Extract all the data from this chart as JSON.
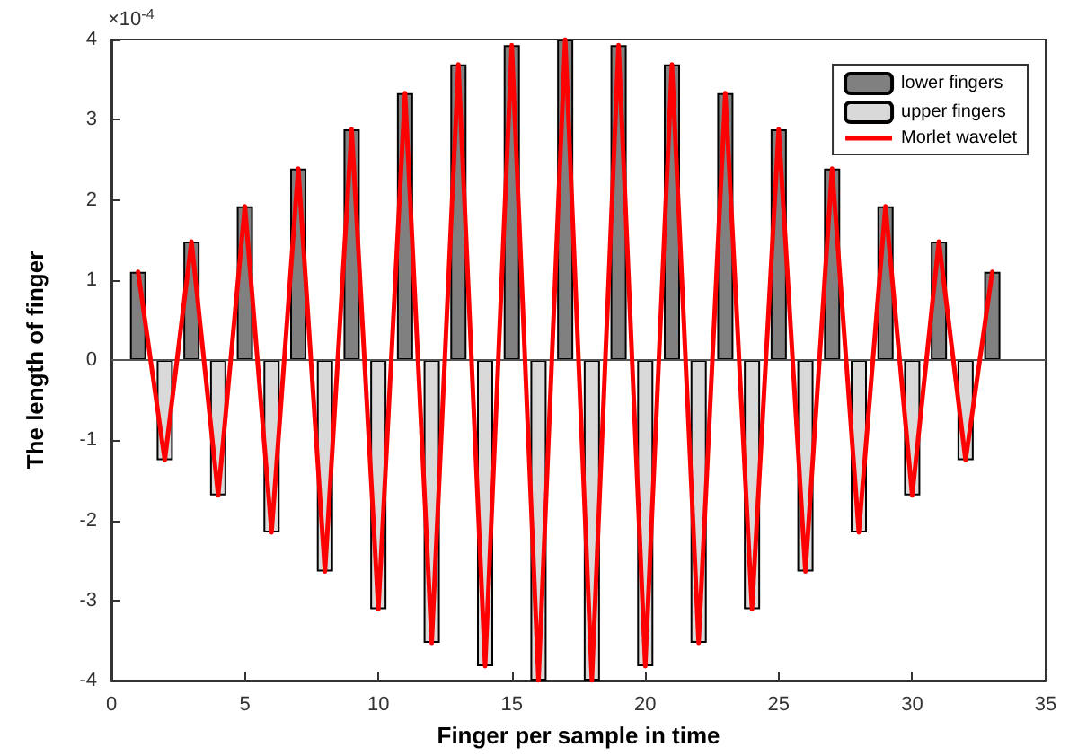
{
  "chart_data": {
    "type": "bar",
    "xlabel": "Finger per sample in time",
    "ylabel": "The length of finger",
    "annotations": [
      "×10$^{-4}$"
    ],
    "xlim": [
      0,
      35
    ],
    "xticks": [
      0,
      5,
      10,
      15,
      20,
      25,
      30,
      35
    ],
    "ylim": [
      -4,
      4
    ],
    "yticks": [
      -4,
      -3,
      -2,
      -1,
      0,
      1,
      2,
      3,
      4
    ],
    "grid": false,
    "ref_lines": [
      {
        "axis": "y",
        "value": 0,
        "color": "#555555"
      }
    ],
    "legend": "top right",
    "marker": "none",
    "line_style": "solid",
    "series": [
      {
        "name": "lower fingers",
        "color": "#808080",
        "x": [
          1,
          3,
          5,
          7,
          9,
          11,
          13,
          15,
          17,
          19,
          21,
          23,
          25,
          27,
          29,
          31,
          33
        ],
        "values": [
          1.1,
          1.48,
          1.92,
          2.39,
          2.88,
          3.33,
          3.69,
          3.93,
          4,
          3.93,
          3.69,
          3.33,
          2.88,
          2.39,
          1.92,
          1.48,
          1.1
        ]
      },
      {
        "name": "upper fingers",
        "color": "#d9d9d9",
        "x": [
          2,
          4,
          6,
          8,
          10,
          12,
          14,
          16,
          18,
          20,
          22,
          24,
          26,
          28,
          30,
          32
        ],
        "values": [
          -1.25,
          -1.69,
          -2.15,
          -2.64,
          -3.11,
          -3.53,
          -3.82,
          -4,
          -4,
          -3.82,
          -3.53,
          -3.11,
          -2.64,
          -2.15,
          -1.69,
          -1.25
        ]
      },
      {
        "name": "Morlet wavelet",
        "type": "line",
        "color": "#ff0000",
        "x": [
          1,
          2,
          3,
          4,
          5,
          6,
          7,
          8,
          9,
          10,
          11,
          12,
          13,
          14,
          15,
          16,
          17,
          18,
          19,
          20,
          21,
          22,
          23,
          24,
          25,
          26,
          27,
          28,
          29,
          30,
          31,
          32,
          33
        ],
        "values": [
          1.1,
          -1.25,
          1.48,
          -1.69,
          1.92,
          -2.15,
          2.39,
          -2.64,
          2.88,
          -3.11,
          3.33,
          -3.53,
          3.69,
          -3.82,
          3.93,
          -4,
          4,
          -4,
          3.93,
          -3.82,
          3.69,
          -3.53,
          3.33,
          -3.11,
          2.88,
          -2.64,
          2.39,
          -2.15,
          1.92,
          -1.69,
          1.48,
          -1.25,
          1.1
        ]
      }
    ]
  }
}
